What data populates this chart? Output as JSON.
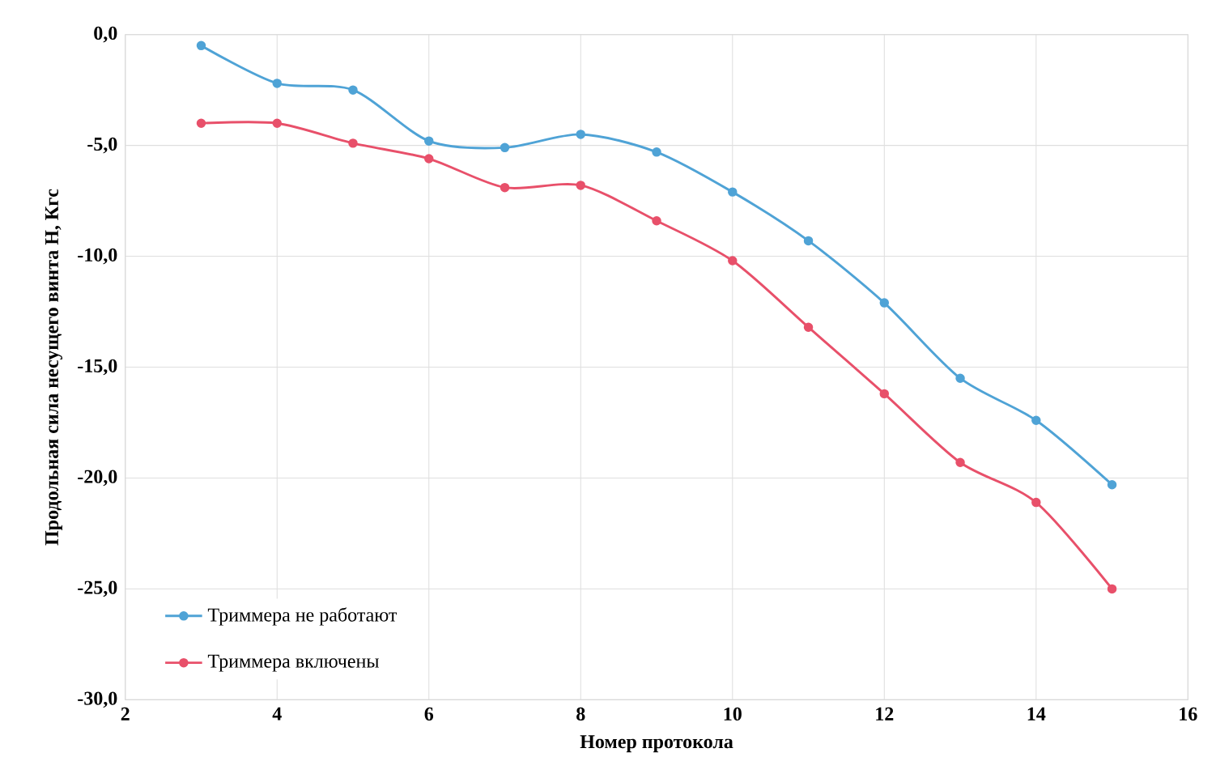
{
  "chart_data": {
    "type": "line",
    "xlabel": "Номер протокола",
    "ylabel": "Продольная сила несущего винта Н, Кгс",
    "x": [
      3,
      4,
      5,
      6,
      7,
      8,
      9,
      10,
      11,
      12,
      13,
      14,
      15
    ],
    "series": [
      {
        "name": "Триммера не работают",
        "color": "#4fa3d6",
        "values": [
          -0.5,
          -2.2,
          -2.5,
          -4.8,
          -5.1,
          -4.5,
          -5.3,
          -7.1,
          -9.3,
          -12.1,
          -15.5,
          -17.4,
          -20.3
        ]
      },
      {
        "name": "Триммера включены",
        "color": "#e8506a",
        "values": [
          -4.0,
          -4.0,
          -4.9,
          -5.6,
          -6.9,
          -6.8,
          -8.4,
          -10.2,
          -13.2,
          -16.2,
          -19.3,
          -21.1,
          -25.0
        ]
      }
    ],
    "xlim": [
      2,
      16
    ],
    "xticks": [
      2,
      4,
      6,
      8,
      10,
      12,
      14,
      16
    ],
    "ylim": [
      -30,
      0
    ],
    "yticks": [
      {
        "value": 0,
        "label": "0,0"
      },
      {
        "value": -5,
        "label": "-5,0"
      },
      {
        "value": -10,
        "label": "-10,0"
      },
      {
        "value": -15,
        "label": "-15,0"
      },
      {
        "value": -20,
        "label": "-20,0"
      },
      {
        "value": -25,
        "label": "-25,0"
      },
      {
        "value": -30,
        "label": "-30,0"
      }
    ],
    "grid": true,
    "legend": "bottom left",
    "marker": "circle",
    "line_style": "solid"
  }
}
